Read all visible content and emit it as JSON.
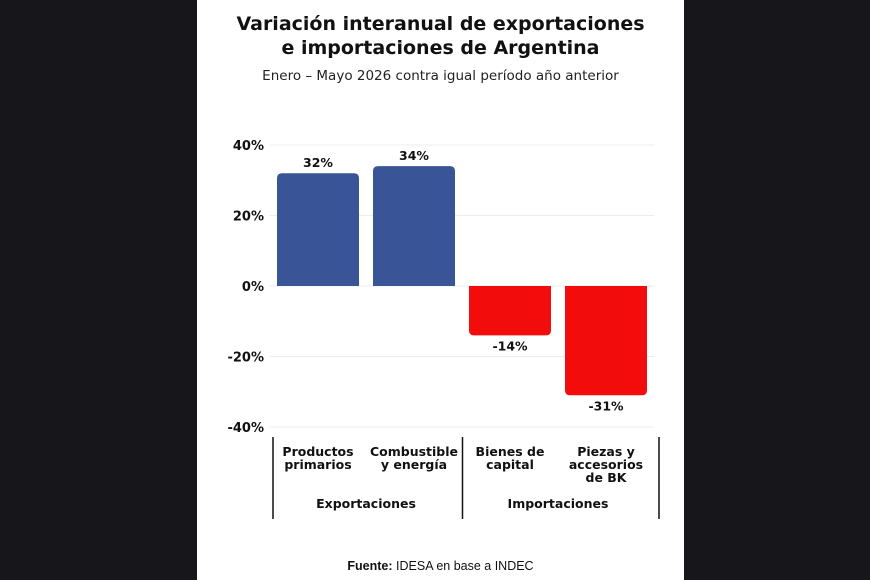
{
  "chart_data": {
    "type": "bar",
    "title_line1": "Variación interanual de exportaciones",
    "title_line2": "e importaciones de Argentina",
    "subtitle": "Enero – Mayo 2026 contra igual período año anterior",
    "categories": [
      [
        "Productos",
        "primarios"
      ],
      [
        "Combustible",
        "y energía"
      ],
      [
        "Bienes de",
        "capital"
      ],
      [
        "Piezas y",
        "accesorios",
        "de BK"
      ]
    ],
    "values": [
      32,
      34,
      -14,
      -31
    ],
    "data_labels": [
      "32%",
      "34%",
      "-14%",
      "-31%"
    ],
    "groups": [
      {
        "label": "Exportaciones",
        "start": 0,
        "end": 1
      },
      {
        "label": "Importaciones",
        "start": 2,
        "end": 3
      }
    ],
    "bar_colors": [
      "#3a5597",
      "#3a5597",
      "#f20c0c",
      "#f20c0c"
    ],
    "ylim": [
      -40,
      40
    ],
    "yticks": [
      40,
      20,
      0,
      -20,
      -40
    ],
    "ytick_labels": [
      "40%",
      "20%",
      "0%",
      "-20%",
      "-40%"
    ],
    "grid": true
  },
  "source": {
    "bold": "Fuente:",
    "text": " IDESA en base a INDEC"
  }
}
